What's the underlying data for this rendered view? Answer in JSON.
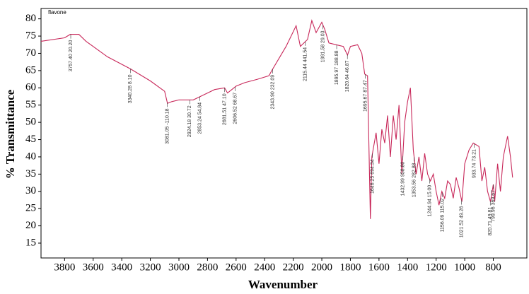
{
  "chart_data": {
    "type": "line",
    "title": "flavone",
    "x_label": "Wavenumber",
    "y_label": "% Transmittance",
    "xlim": [
      3965,
      565
    ],
    "ylim": [
      10.7,
      83
    ],
    "xticks": [
      3800,
      3600,
      3400,
      3200,
      3000,
      2800,
      2600,
      2400,
      2200,
      2000,
      1800,
      1600,
      1400,
      1200,
      1000,
      800
    ],
    "yticks": [
      15,
      20,
      25,
      30,
      35,
      40,
      45,
      50,
      55,
      60,
      65,
      70,
      75,
      80
    ],
    "series": [
      {
        "color": "#c8285a",
        "x": [
          3965,
          3800,
          3760,
          3700,
          3650,
          3500,
          3340,
          3200,
          3100,
          3080,
          3050,
          3000,
          2940,
          2900,
          2850,
          2750,
          2680,
          2660,
          2600,
          2540,
          2450,
          2370,
          2350,
          2250,
          2180,
          2150,
          2100,
          2070,
          2040,
          2000,
          1980,
          1950,
          1900,
          1850,
          1820,
          1800,
          1750,
          1720,
          1700,
          1680,
          1660,
          1650,
          1620,
          1600,
          1580,
          1560,
          1540,
          1520,
          1500,
          1480,
          1460,
          1440,
          1420,
          1400,
          1380,
          1360,
          1340,
          1320,
          1300,
          1280,
          1260,
          1240,
          1220,
          1200,
          1180,
          1160,
          1140,
          1120,
          1100,
          1080,
          1060,
          1040,
          1020,
          1000,
          970,
          940,
          900,
          880,
          860,
          840,
          820,
          800,
          790,
          770,
          750,
          730,
          700,
          680,
          665
        ],
        "values": [
          73.5,
          74.5,
          75.5,
          75.5,
          73.5,
          69,
          65.5,
          62,
          59,
          55.5,
          56,
          56.5,
          56.5,
          56.5,
          57.5,
          59.5,
          60,
          58.5,
          60.5,
          61.5,
          62.5,
          63.5,
          65,
          72,
          78,
          72,
          74,
          79.5,
          76,
          79,
          77,
          73,
          72.5,
          72,
          69.5,
          72,
          72.5,
          70,
          64,
          63.5,
          22,
          40,
          47,
          38,
          48,
          44,
          52,
          40,
          52,
          45,
          55,
          35,
          50,
          56,
          60,
          42,
          35,
          40,
          33,
          41,
          35,
          33,
          35,
          30,
          26,
          30,
          28,
          33,
          32,
          28,
          34,
          31,
          27,
          38,
          42,
          44,
          43,
          33,
          37,
          30,
          27,
          32,
          27,
          38,
          30,
          40,
          46,
          40,
          34
        ]
      }
    ],
    "annotations": [
      {
        "x": 3757,
        "text": "3757.40 20.20"
      },
      {
        "x": 3340,
        "text": "3340.28 8.10"
      },
      {
        "x": 3081,
        "text": "3081.05 -110.18"
      },
      {
        "x": 2924,
        "text": "2924.18 30.72"
      },
      {
        "x": 2853,
        "text": "2853.24 54.84"
      },
      {
        "x": 2681,
        "text": "2681.51 47.10"
      },
      {
        "x": 2606,
        "text": "2606.52 68.67"
      },
      {
        "x": 2344,
        "text": "2343.90 232.09"
      },
      {
        "x": 2115,
        "text": "2115.44 441.54"
      },
      {
        "x": 1992,
        "text": "1991.58 29.03"
      },
      {
        "x": 1896,
        "text": "1895.97 188.88"
      },
      {
        "x": 1821,
        "text": "1820.64 46.87"
      },
      {
        "x": 1696,
        "text": "1695.67 87.47"
      },
      {
        "x": 1646,
        "text": "1646.25 694.34"
      },
      {
        "x": 1433,
        "text": "1432.99 958.80"
      },
      {
        "x": 1354,
        "text": "1353.56 282.88"
      },
      {
        "x": 1245,
        "text": "1244.94 15.00"
      },
      {
        "x": 1156,
        "text": "1156.09 115.02"
      },
      {
        "x": 1022,
        "text": "1021.52 49.26"
      },
      {
        "x": 934,
        "text": "933.74 73.21"
      },
      {
        "x": 821,
        "text": "820.71 49.81"
      },
      {
        "x": 800,
        "text": "799.96 369.67"
      }
    ]
  }
}
